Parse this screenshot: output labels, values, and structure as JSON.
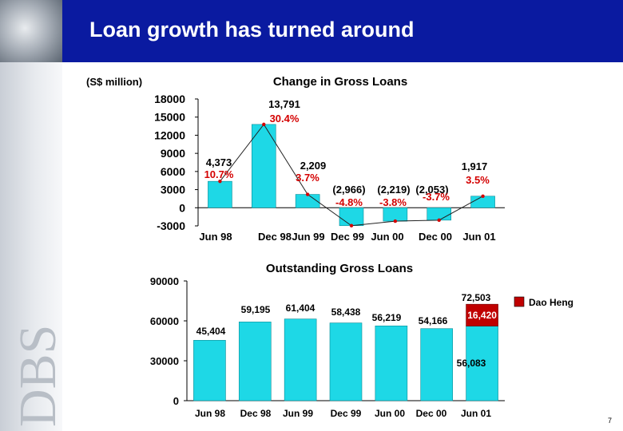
{
  "page": {
    "title": "Loan growth has turned around",
    "page_number": "7",
    "watermark": "DBS"
  },
  "chart_data": [
    {
      "type": "bar",
      "title": "Change in Gross Loans",
      "unit_label": "(S$ million)",
      "categories": [
        "Jun 98",
        "Dec 98",
        "Jun 99",
        "Dec 99",
        "Jun 00",
        "Dec 00",
        "Jun 01"
      ],
      "values": [
        4373,
        13791,
        2209,
        -2966,
        -2219,
        -2053,
        1917
      ],
      "data_labels": [
        "4,373",
        "13,791",
        "2,209",
        "(2,966)",
        "(2,219)",
        "(2,053)",
        "1,917"
      ],
      "line_series": {
        "values": [
          4373,
          13791,
          2209,
          -2966,
          -2219,
          -2053,
          1917
        ],
        "labels": [
          "10.7%",
          "30.4%",
          "3.7%",
          "-4.8%",
          "-3.8%",
          "-3.7%",
          "3.5%"
        ]
      },
      "y_ticks": [
        "18000",
        "15000",
        "12000",
        "9000",
        "6000",
        "3000",
        "0",
        "-3000"
      ],
      "ylim": [
        -3000,
        18000
      ],
      "colors": {
        "bar": "#1ed8e6",
        "line": "#222222",
        "point_label": "#d40000",
        "value_label": "#000000"
      }
    },
    {
      "type": "bar",
      "title": "Outstanding Gross Loans",
      "categories": [
        "Jun 98",
        "Dec 98",
        "Jun 99",
        "Dec 99",
        "Jun 00",
        "Dec 00",
        "Jun 01"
      ],
      "series": [
        {
          "values": [
            45404,
            59195,
            61404,
            58438,
            56219,
            54166,
            56083
          ],
          "data_labels": [
            "45,404",
            "59,195",
            "61,404",
            "58,438",
            "56,219",
            "54,166",
            "56,083"
          ]
        },
        {
          "name": "Dao Heng",
          "values": [
            null,
            null,
            null,
            null,
            null,
            null,
            16420
          ],
          "data_labels": [
            "",
            "",
            "",
            "",
            "",
            "",
            "16,420"
          ]
        }
      ],
      "totals": {
        "labels": [
          "",
          "",
          "",
          "",
          "",
          "",
          "72,503"
        ]
      },
      "y_ticks": [
        "90000",
        "60000",
        "30000",
        "0"
      ],
      "ylim": [
        0,
        90000
      ],
      "legend": "right",
      "colors": {
        "bar": "#1ed8e6",
        "dao_heng": "#c00000",
        "dao_heng_text": "#ffffff"
      }
    }
  ]
}
